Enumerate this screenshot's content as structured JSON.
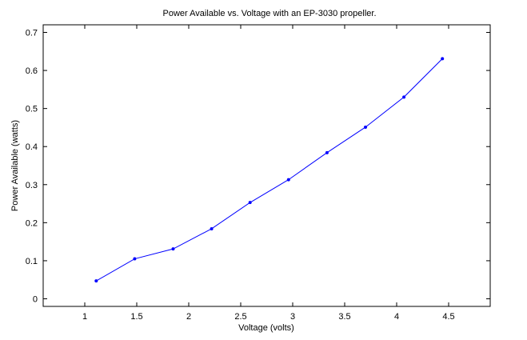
{
  "chart_data": {
    "type": "line",
    "title": "Power Available vs. Voltage with an EP-3030 propeller.",
    "xlabel": "Voltage (volts)",
    "ylabel": "Power Available (watts)",
    "xlim": [
      0.6,
      4.9
    ],
    "ylim": [
      -0.02,
      0.72
    ],
    "xticks": [
      1,
      1.5,
      2,
      2.5,
      3,
      3.5,
      4,
      4.5
    ],
    "xtick_labels": [
      "1",
      "1.5",
      "2",
      "2.5",
      "3",
      "3.5",
      "4",
      "4.5"
    ],
    "yticks": [
      0,
      0.1,
      0.2,
      0.3,
      0.4,
      0.5,
      0.6,
      0.7
    ],
    "ytick_labels": [
      "0",
      "0.1",
      "0.2",
      "0.3",
      "0.4",
      "0.5",
      "0.6",
      "0.7"
    ],
    "grid": false,
    "legend": "none",
    "line_color": "#0000ff",
    "series": [
      {
        "x": [
          1.11,
          1.48,
          1.85,
          2.22,
          2.59,
          2.96,
          3.33,
          3.7,
          4.07,
          4.44
        ],
        "values": [
          0.047,
          0.105,
          0.131,
          0.184,
          0.253,
          0.313,
          0.384,
          0.451,
          0.53,
          0.631
        ]
      }
    ]
  }
}
